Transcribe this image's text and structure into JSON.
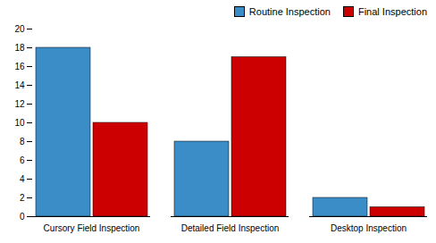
{
  "chart_data": {
    "type": "bar",
    "categories": [
      "Cursory Field Inspection",
      "Detailed Field Inspection",
      "Desktop Inspection"
    ],
    "series": [
      {
        "name": "Routine Inspection",
        "color": "#3B8DC8",
        "values": [
          18,
          8,
          2
        ]
      },
      {
        "name": "Final Inspection",
        "color": "#CC0000",
        "values": [
          10,
          17,
          1
        ]
      }
    ],
    "ylim": [
      0,
      20
    ],
    "yticks": [
      0,
      2,
      4,
      6,
      8,
      10,
      12,
      14,
      16,
      18,
      20
    ],
    "grid": false,
    "legend": "upper right"
  }
}
